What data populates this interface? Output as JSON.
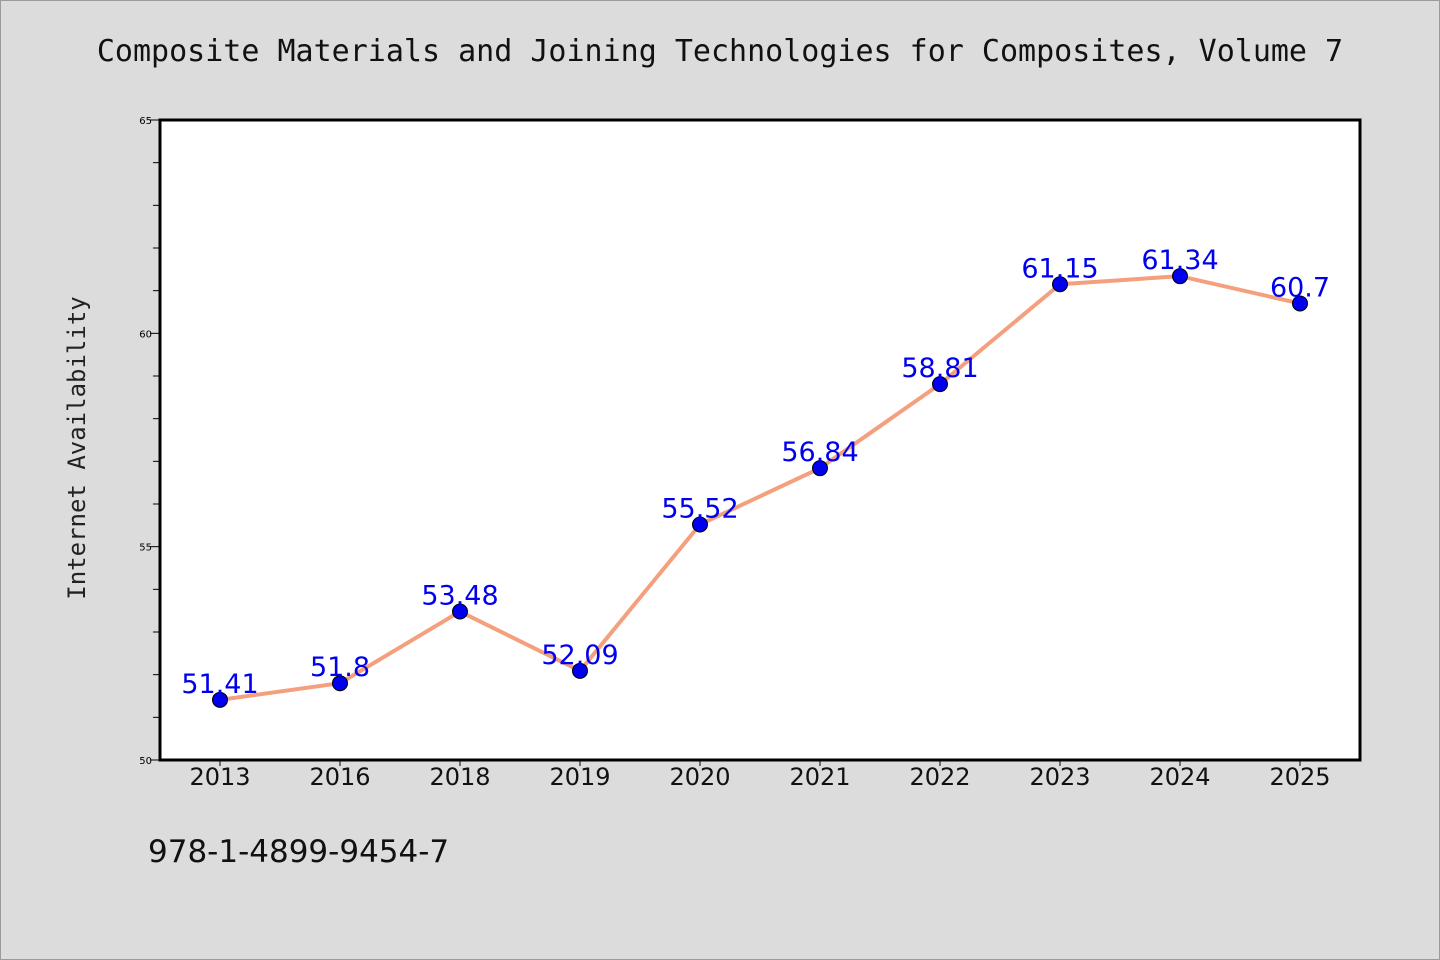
{
  "chart_data": {
    "type": "line",
    "title": "Composite Materials and Joining Technologies for Composites, Volume 7",
    "xlabel": "",
    "ylabel": "Internet Availability",
    "categories": [
      "2013",
      "2016",
      "2018",
      "2019",
      "2020",
      "2021",
      "2022",
      "2023",
      "2024",
      "2025"
    ],
    "values": [
      51.41,
      51.8,
      53.48,
      52.09,
      55.52,
      56.84,
      58.81,
      61.15,
      61.34,
      60.7
    ],
    "data_labels": [
      "51.41",
      "51.8",
      "53.48",
      "52.09",
      "55.52",
      "56.84",
      "58.81",
      "61.15",
      "61.34",
      "60.7"
    ],
    "ylim": [
      50,
      65
    ],
    "y_ticks": [
      50,
      55,
      60,
      65
    ],
    "y_tick_labels": [
      "50",
      "55",
      "60",
      "65"
    ],
    "grid": false,
    "colors": {
      "line": "#f4a07e",
      "marker": "#0000ee",
      "label": "#0000ee"
    }
  },
  "footer_text": "978-1-4899-9454-7"
}
